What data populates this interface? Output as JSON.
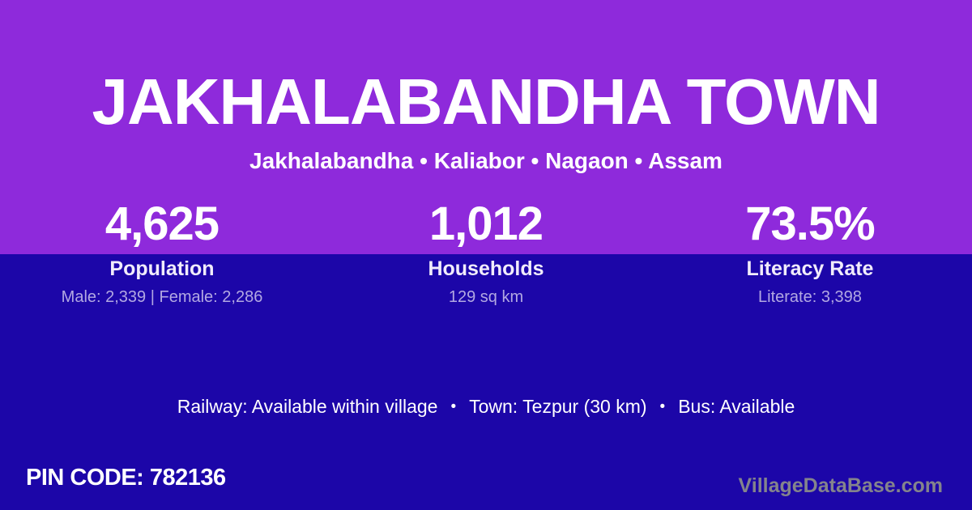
{
  "card": {
    "title": "JAKHALABANDHA TOWN",
    "subtitle": "Jakhalabandha • Kaliabor • Nagaon • Assam",
    "stats": [
      {
        "value": "4,625",
        "label": "Population",
        "detail": "Male: 2,339 | Female: 2,286"
      },
      {
        "value": "1,012",
        "label": "Households",
        "detail": "129 sq km"
      },
      {
        "value": "73.5%",
        "label": "Literacy Rate",
        "detail": "Literate: 3,398"
      }
    ],
    "transport": {
      "railway": "Railway: Available within village",
      "town": "Town: Tezpur (30 km)",
      "bus": "Bus: Available",
      "separator": "•"
    },
    "pin_code": "PIN CODE: 782136",
    "watermark": "VillageDataBase.com",
    "colors": {
      "top_bg": "#8E2ADB",
      "bottom_bg": "#1C06A8",
      "muted_text": "#B2A8E2",
      "watermark_text": "#84848C"
    }
  }
}
